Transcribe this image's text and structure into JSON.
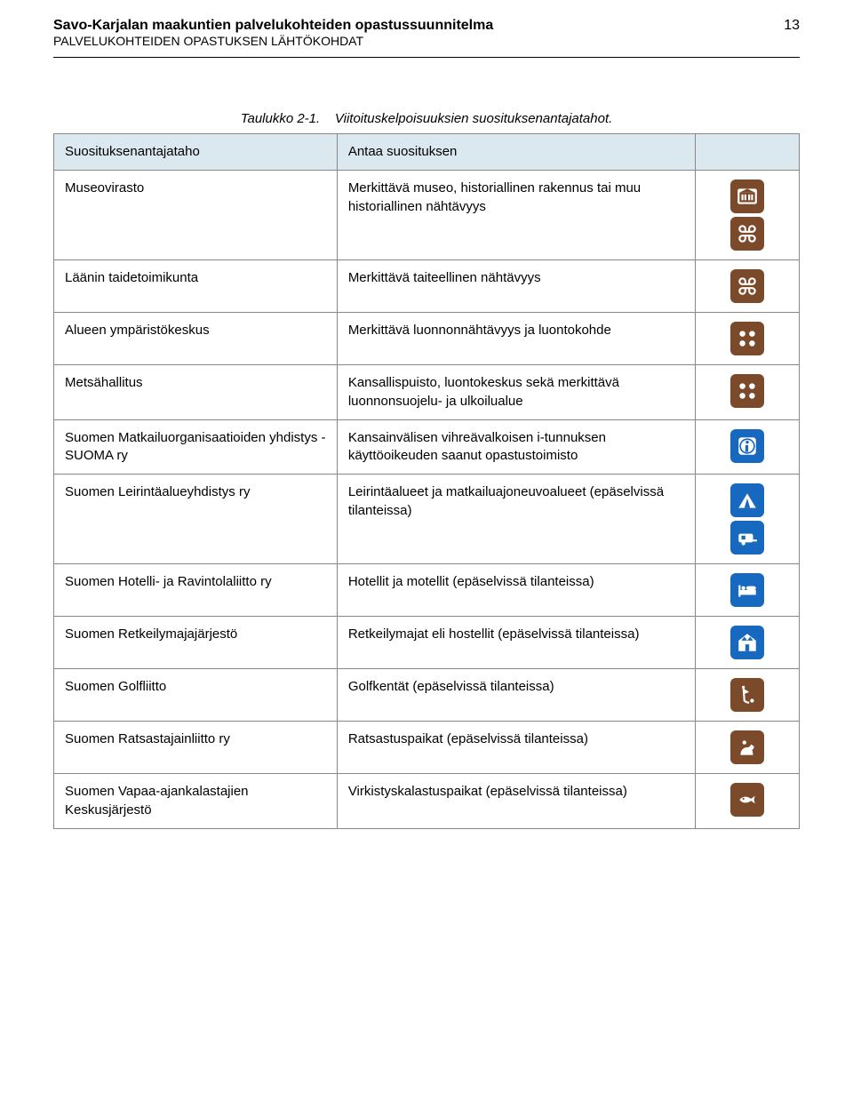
{
  "doc": {
    "title": "Savo-Karjalan maakuntien palvelukohteiden opastussuunnitelma",
    "subtitle": "PALVELUKOHTEIDEN OPASTUKSEN LÄHTÖKOHDAT",
    "page_number": "13"
  },
  "caption": {
    "table_no": "Taulukko 2-1.",
    "text": "Viitoituskelpoisuuksien suosituksenantajatahot."
  },
  "table_header": {
    "c1": "Suosituksenantajataho",
    "c2": "Antaa suosituksen"
  },
  "rows": [
    {
      "c1": "Museovirasto",
      "c2": "Merkittävä museo, historiallinen rakennus tai muu historiallinen nähtävyys",
      "icons": [
        "museum",
        "command"
      ],
      "layout": "col"
    },
    {
      "c1": "Läänin taidetoimikunta",
      "c2": "Merkittävä taiteellinen nähtävyys",
      "icons": [
        "command"
      ],
      "layout": "col"
    },
    {
      "c1": "Alueen ympäristökeskus",
      "c2": "Merkittävä luonnonnähtävyys ja luontokohde",
      "icons": [
        "flower"
      ],
      "layout": "col"
    },
    {
      "c1": "Metsähallitus",
      "c2": "Kansallispuisto, luontokeskus sekä merkittävä luonnonsuojelu- ja ulkoilualue",
      "icons": [
        "flower"
      ],
      "layout": "col"
    },
    {
      "c1": "Suomen Matkailuorganisaatioiden yhdistys -SUOMA ry",
      "c2": "Kansainvälisen vihreävalkoisen i-tunnuksen käyttöoikeuden saanut opastustoimisto",
      "icons": [
        "info"
      ],
      "layout": "col"
    },
    {
      "c1": "Suomen Leirintäalueyhdistys ry",
      "c2": "Leirintäalueet ja matkailuajoneuvoalueet (epäselvissä tilanteissa)",
      "icons": [
        "tent",
        "caravan"
      ],
      "layout": "col"
    },
    {
      "c1": "Suomen Hotelli- ja Ravintolaliitto ry",
      "c2": "Hotellit ja motellit (epäselvissä tilanteissa)",
      "icons": [
        "bed"
      ],
      "layout": "col"
    },
    {
      "c1": "Suomen Retkeilymajajärjestö",
      "c2": "Retkeilymajat eli hostellit (epäselvissä tilanteissa)",
      "icons": [
        "hostel"
      ],
      "layout": "col"
    },
    {
      "c1": "Suomen Golfliitto",
      "c2": "Golfkentät (epäselvissä tilanteissa)",
      "icons": [
        "golf"
      ],
      "layout": "col"
    },
    {
      "c1": "Suomen Ratsastajainliitto ry",
      "c2": "Ratsastuspaikat (epäselvissä tilanteissa)",
      "icons": [
        "horse"
      ],
      "layout": "col"
    },
    {
      "c1": "Suomen Vapaa-ajankalastajien Keskusjärjestö",
      "c2": "Virkistyskalastuspaikat (epäselvissä tilanteissa)",
      "icons": [
        "fish"
      ],
      "layout": "col"
    }
  ],
  "colors": {
    "brown": "#7a4a2b",
    "blue": "#1769c0",
    "header_bg": "#dbe8f0"
  }
}
